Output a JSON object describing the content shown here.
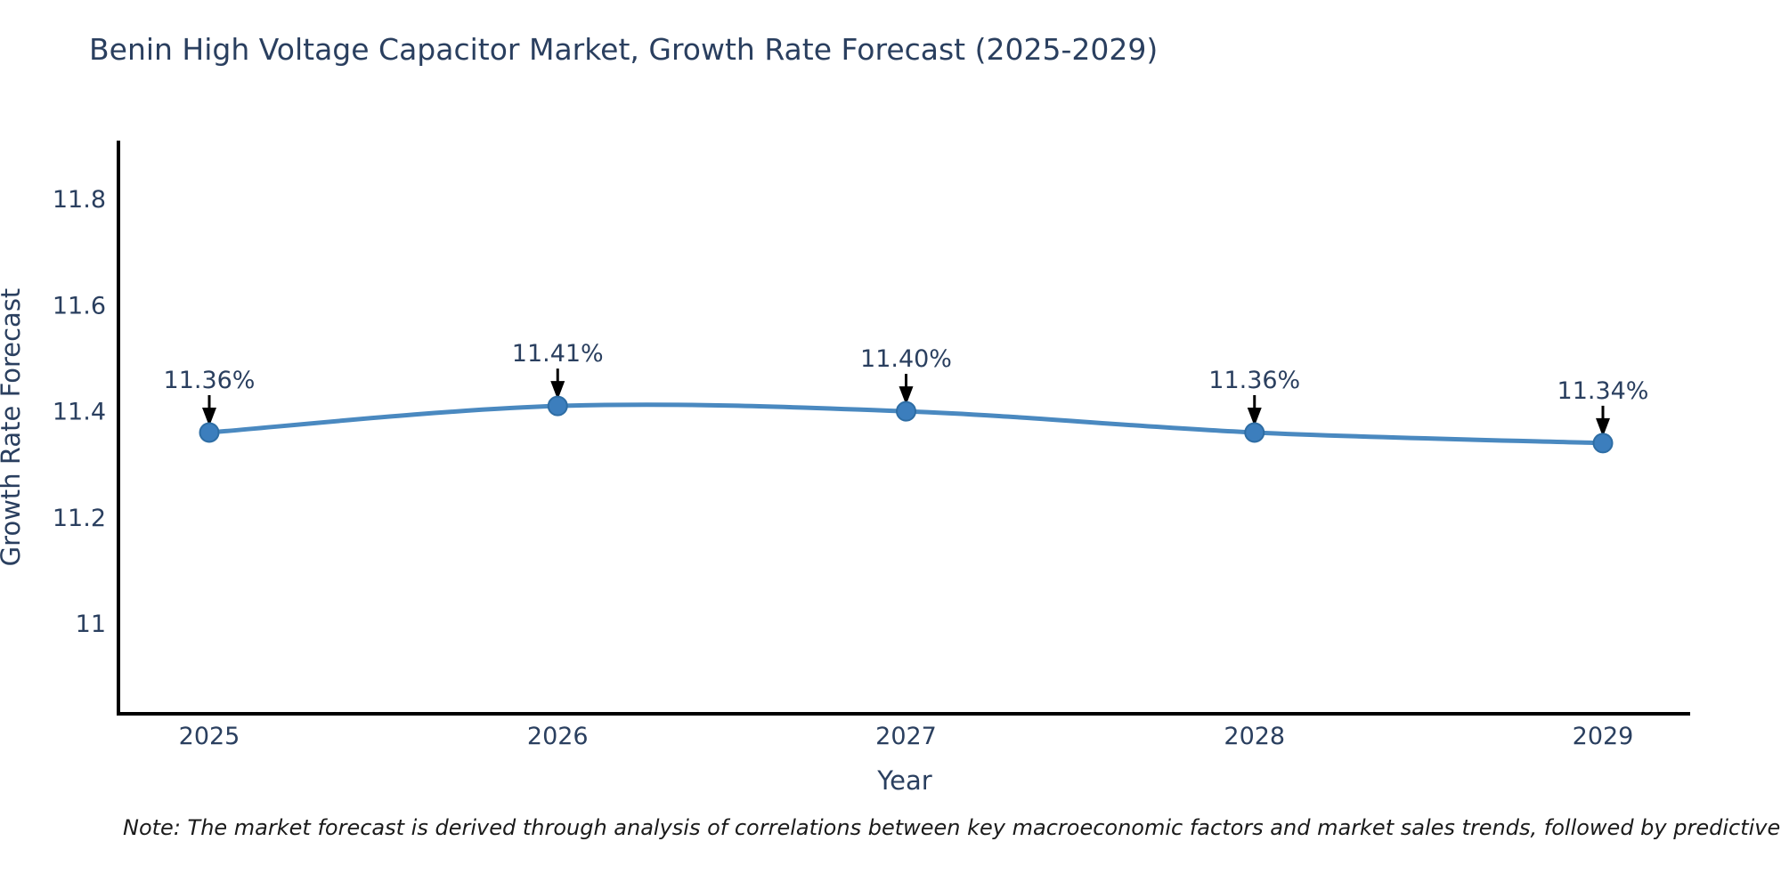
{
  "title": "Benin High Voltage Capacitor Market, Growth Rate Forecast (2025-2029)",
  "footnote": "Note: The market forecast is derived through analysis of correlations between key macroeconomic factors and market sales trends, followed by predictive modeling to project future sal",
  "chart_data": {
    "type": "line",
    "title": "Benin High Voltage Capacitor Market, Growth Rate Forecast (2025-2029)",
    "xlabel": "Year",
    "ylabel": "Growth Rate Forecast",
    "categories": [
      "2025",
      "2026",
      "2027",
      "2028",
      "2029"
    ],
    "values": [
      11.36,
      11.41,
      11.4,
      11.36,
      11.34
    ],
    "point_labels": [
      "11.36%",
      "11.41%",
      "11.40%",
      "11.36%",
      "11.34%"
    ],
    "yticks": [
      "11",
      "11.2",
      "11.4",
      "11.6",
      "11.8"
    ],
    "ytick_values": [
      11.0,
      11.2,
      11.4,
      11.6,
      11.8
    ],
    "ylim": [
      10.83,
      11.91
    ],
    "grid": false,
    "legend": "none",
    "annotation_style": "down-arrow",
    "colors": {
      "line": "#4a89c0",
      "marker": "#3c7ebd",
      "marker_edge": "#2e6da4",
      "axis": "#000000",
      "text": "#2a3f5f",
      "arrow": "#000000",
      "note_text": "#1a1a1a"
    }
  }
}
